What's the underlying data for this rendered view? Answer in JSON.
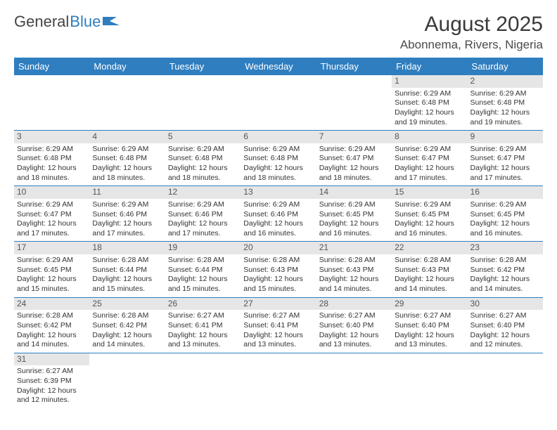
{
  "logo": {
    "text1": "General",
    "text2": "Blue"
  },
  "title": "August 2025",
  "location": "Abonnema, Rivers, Nigeria",
  "colors": {
    "brand": "#2f7ec0",
    "daynum_bg": "#e6e6e6",
    "text": "#333333"
  },
  "weekdays": [
    "Sunday",
    "Monday",
    "Tuesday",
    "Wednesday",
    "Thursday",
    "Friday",
    "Saturday"
  ],
  "weeks": [
    [
      null,
      null,
      null,
      null,
      null,
      {
        "n": "1",
        "sr": "Sunrise: 6:29 AM",
        "ss": "Sunset: 6:48 PM",
        "dl1": "Daylight: 12 hours",
        "dl2": "and 19 minutes."
      },
      {
        "n": "2",
        "sr": "Sunrise: 6:29 AM",
        "ss": "Sunset: 6:48 PM",
        "dl1": "Daylight: 12 hours",
        "dl2": "and 19 minutes."
      }
    ],
    [
      {
        "n": "3",
        "sr": "Sunrise: 6:29 AM",
        "ss": "Sunset: 6:48 PM",
        "dl1": "Daylight: 12 hours",
        "dl2": "and 18 minutes."
      },
      {
        "n": "4",
        "sr": "Sunrise: 6:29 AM",
        "ss": "Sunset: 6:48 PM",
        "dl1": "Daylight: 12 hours",
        "dl2": "and 18 minutes."
      },
      {
        "n": "5",
        "sr": "Sunrise: 6:29 AM",
        "ss": "Sunset: 6:48 PM",
        "dl1": "Daylight: 12 hours",
        "dl2": "and 18 minutes."
      },
      {
        "n": "6",
        "sr": "Sunrise: 6:29 AM",
        "ss": "Sunset: 6:48 PM",
        "dl1": "Daylight: 12 hours",
        "dl2": "and 18 minutes."
      },
      {
        "n": "7",
        "sr": "Sunrise: 6:29 AM",
        "ss": "Sunset: 6:47 PM",
        "dl1": "Daylight: 12 hours",
        "dl2": "and 18 minutes."
      },
      {
        "n": "8",
        "sr": "Sunrise: 6:29 AM",
        "ss": "Sunset: 6:47 PM",
        "dl1": "Daylight: 12 hours",
        "dl2": "and 17 minutes."
      },
      {
        "n": "9",
        "sr": "Sunrise: 6:29 AM",
        "ss": "Sunset: 6:47 PM",
        "dl1": "Daylight: 12 hours",
        "dl2": "and 17 minutes."
      }
    ],
    [
      {
        "n": "10",
        "sr": "Sunrise: 6:29 AM",
        "ss": "Sunset: 6:47 PM",
        "dl1": "Daylight: 12 hours",
        "dl2": "and 17 minutes."
      },
      {
        "n": "11",
        "sr": "Sunrise: 6:29 AM",
        "ss": "Sunset: 6:46 PM",
        "dl1": "Daylight: 12 hours",
        "dl2": "and 17 minutes."
      },
      {
        "n": "12",
        "sr": "Sunrise: 6:29 AM",
        "ss": "Sunset: 6:46 PM",
        "dl1": "Daylight: 12 hours",
        "dl2": "and 17 minutes."
      },
      {
        "n": "13",
        "sr": "Sunrise: 6:29 AM",
        "ss": "Sunset: 6:46 PM",
        "dl1": "Daylight: 12 hours",
        "dl2": "and 16 minutes."
      },
      {
        "n": "14",
        "sr": "Sunrise: 6:29 AM",
        "ss": "Sunset: 6:45 PM",
        "dl1": "Daylight: 12 hours",
        "dl2": "and 16 minutes."
      },
      {
        "n": "15",
        "sr": "Sunrise: 6:29 AM",
        "ss": "Sunset: 6:45 PM",
        "dl1": "Daylight: 12 hours",
        "dl2": "and 16 minutes."
      },
      {
        "n": "16",
        "sr": "Sunrise: 6:29 AM",
        "ss": "Sunset: 6:45 PM",
        "dl1": "Daylight: 12 hours",
        "dl2": "and 16 minutes."
      }
    ],
    [
      {
        "n": "17",
        "sr": "Sunrise: 6:29 AM",
        "ss": "Sunset: 6:45 PM",
        "dl1": "Daylight: 12 hours",
        "dl2": "and 15 minutes."
      },
      {
        "n": "18",
        "sr": "Sunrise: 6:28 AM",
        "ss": "Sunset: 6:44 PM",
        "dl1": "Daylight: 12 hours",
        "dl2": "and 15 minutes."
      },
      {
        "n": "19",
        "sr": "Sunrise: 6:28 AM",
        "ss": "Sunset: 6:44 PM",
        "dl1": "Daylight: 12 hours",
        "dl2": "and 15 minutes."
      },
      {
        "n": "20",
        "sr": "Sunrise: 6:28 AM",
        "ss": "Sunset: 6:43 PM",
        "dl1": "Daylight: 12 hours",
        "dl2": "and 15 minutes."
      },
      {
        "n": "21",
        "sr": "Sunrise: 6:28 AM",
        "ss": "Sunset: 6:43 PM",
        "dl1": "Daylight: 12 hours",
        "dl2": "and 14 minutes."
      },
      {
        "n": "22",
        "sr": "Sunrise: 6:28 AM",
        "ss": "Sunset: 6:43 PM",
        "dl1": "Daylight: 12 hours",
        "dl2": "and 14 minutes."
      },
      {
        "n": "23",
        "sr": "Sunrise: 6:28 AM",
        "ss": "Sunset: 6:42 PM",
        "dl1": "Daylight: 12 hours",
        "dl2": "and 14 minutes."
      }
    ],
    [
      {
        "n": "24",
        "sr": "Sunrise: 6:28 AM",
        "ss": "Sunset: 6:42 PM",
        "dl1": "Daylight: 12 hours",
        "dl2": "and 14 minutes."
      },
      {
        "n": "25",
        "sr": "Sunrise: 6:28 AM",
        "ss": "Sunset: 6:42 PM",
        "dl1": "Daylight: 12 hours",
        "dl2": "and 14 minutes."
      },
      {
        "n": "26",
        "sr": "Sunrise: 6:27 AM",
        "ss": "Sunset: 6:41 PM",
        "dl1": "Daylight: 12 hours",
        "dl2": "and 13 minutes."
      },
      {
        "n": "27",
        "sr": "Sunrise: 6:27 AM",
        "ss": "Sunset: 6:41 PM",
        "dl1": "Daylight: 12 hours",
        "dl2": "and 13 minutes."
      },
      {
        "n": "28",
        "sr": "Sunrise: 6:27 AM",
        "ss": "Sunset: 6:40 PM",
        "dl1": "Daylight: 12 hours",
        "dl2": "and 13 minutes."
      },
      {
        "n": "29",
        "sr": "Sunrise: 6:27 AM",
        "ss": "Sunset: 6:40 PM",
        "dl1": "Daylight: 12 hours",
        "dl2": "and 13 minutes."
      },
      {
        "n": "30",
        "sr": "Sunrise: 6:27 AM",
        "ss": "Sunset: 6:40 PM",
        "dl1": "Daylight: 12 hours",
        "dl2": "and 12 minutes."
      }
    ],
    [
      {
        "n": "31",
        "sr": "Sunrise: 6:27 AM",
        "ss": "Sunset: 6:39 PM",
        "dl1": "Daylight: 12 hours",
        "dl2": "and 12 minutes."
      },
      null,
      null,
      null,
      null,
      null,
      null
    ]
  ]
}
